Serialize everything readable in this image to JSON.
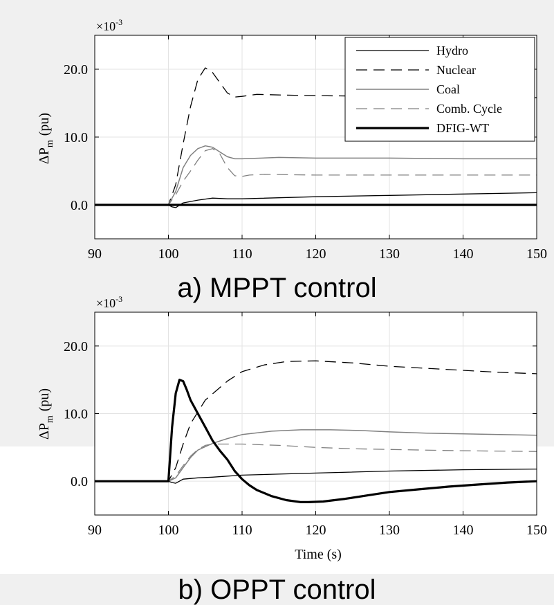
{
  "chart_data": [
    {
      "type": "line",
      "title": "a) MPPT control",
      "ylabel_main": "ΔP",
      "ylabel_sub": "m",
      "ylabel_unit": "(pu)",
      "exponent_base": "×10",
      "exponent_power": "-3",
      "xlabel": "",
      "xlim": [
        90,
        150
      ],
      "ylim": [
        -5,
        25
      ],
      "xticks": [
        90,
        100,
        110,
        120,
        130,
        140,
        150
      ],
      "yticks": [
        0,
        10,
        20
      ],
      "ytick_labels": [
        "0.0",
        "10.0",
        "20.0"
      ],
      "grid": true,
      "legend_position": "top-right",
      "series": [
        {
          "name": "Hydro",
          "style": "solid-thin-black",
          "x": [
            90,
            100,
            100.5,
            101,
            102,
            104,
            106,
            108,
            110,
            120,
            130,
            140,
            150
          ],
          "y": [
            0,
            0,
            -0.3,
            -0.4,
            0.3,
            0.7,
            1.0,
            0.9,
            0.9,
            1.2,
            1.4,
            1.6,
            1.8
          ]
        },
        {
          "name": "Nuclear",
          "style": "dashed-black",
          "x": [
            90,
            100,
            101,
            102,
            103,
            104,
            105,
            106,
            107,
            108,
            109,
            110,
            112,
            115,
            120,
            130,
            140,
            150
          ],
          "y": [
            0,
            0,
            3,
            9,
            14.5,
            18.5,
            20.2,
            19.5,
            18,
            16.5,
            15.9,
            16,
            16.3,
            16.2,
            16.1,
            16,
            15.9,
            15.8
          ]
        },
        {
          "name": "Coal",
          "style": "solid-gray",
          "x": [
            90,
            100,
            101,
            102,
            103,
            104,
            105,
            106,
            107,
            108,
            109,
            110,
            115,
            120,
            130,
            140,
            150
          ],
          "y": [
            0,
            0,
            2,
            5.5,
            7.3,
            8.3,
            8.7,
            8.5,
            7.8,
            7.1,
            6.8,
            6.8,
            7.0,
            6.9,
            6.9,
            6.8,
            6.8
          ]
        },
        {
          "name": "Comb. Cycle",
          "style": "dashed-gray",
          "x": [
            90,
            100,
            101,
            102,
            103,
            104,
            105,
            106,
            107,
            108,
            109,
            110,
            111,
            113,
            120,
            130,
            140,
            150
          ],
          "y": [
            0,
            0,
            1.5,
            3.5,
            5,
            6.6,
            8.0,
            8.3,
            7.5,
            5.5,
            4.3,
            4.2,
            4.4,
            4.5,
            4.4,
            4.4,
            4.4,
            4.4
          ]
        },
        {
          "name": "DFIG-WT",
          "style": "solid-thick-black",
          "x": [
            90,
            150
          ],
          "y": [
            0,
            0
          ]
        }
      ]
    },
    {
      "type": "line",
      "title": "b) OPPT control",
      "ylabel_main": "ΔP",
      "ylabel_sub": "m",
      "ylabel_unit": "(pu)",
      "exponent_base": "×10",
      "exponent_power": "-3",
      "xlabel": "Time (s)",
      "xlim": [
        90,
        150
      ],
      "ylim": [
        -5,
        25
      ],
      "xticks": [
        90,
        100,
        110,
        120,
        130,
        140,
        150
      ],
      "yticks": [
        0,
        10,
        20
      ],
      "ytick_labels": [
        "0.0",
        "10.0",
        "20.0"
      ],
      "grid": true,
      "series": [
        {
          "name": "Hydro",
          "style": "solid-thin-black",
          "x": [
            90,
            100,
            100.5,
            101,
            102,
            104,
            106,
            110,
            120,
            130,
            140,
            150
          ],
          "y": [
            0,
            0,
            -0.2,
            -0.3,
            0.3,
            0.5,
            0.6,
            0.9,
            1.2,
            1.5,
            1.7,
            1.8
          ]
        },
        {
          "name": "Nuclear",
          "style": "dashed-black",
          "x": [
            90,
            100,
            101,
            102,
            103,
            105,
            108,
            110,
            113,
            116,
            120,
            125,
            130,
            135,
            140,
            145,
            150
          ],
          "y": [
            0,
            0,
            2,
            5.5,
            8.5,
            12,
            14.8,
            16.2,
            17.2,
            17.7,
            17.8,
            17.5,
            17.0,
            16.7,
            16.4,
            16.1,
            15.9
          ]
        },
        {
          "name": "Coal",
          "style": "solid-gray",
          "x": [
            90,
            100,
            101,
            102,
            103,
            104,
            106,
            108,
            110,
            114,
            118,
            122,
            126,
            130,
            135,
            140,
            145,
            150
          ],
          "y": [
            0,
            0,
            0.5,
            2,
            3.5,
            4.6,
            5.6,
            6.3,
            6.9,
            7.4,
            7.6,
            7.6,
            7.5,
            7.3,
            7.1,
            7.0,
            6.9,
            6.8
          ]
        },
        {
          "name": "Comb. Cycle",
          "style": "dashed-gray",
          "x": [
            90,
            100,
            101,
            102,
            103,
            104,
            105,
            106,
            108,
            110,
            115,
            120,
            125,
            130,
            140,
            150
          ],
          "y": [
            0,
            0,
            0.8,
            2.3,
            3.7,
            4.7,
            5.3,
            5.5,
            5.5,
            5.5,
            5.3,
            5.0,
            4.8,
            4.7,
            4.5,
            4.4
          ]
        },
        {
          "name": "DFIG-WT",
          "style": "solid-thick-black",
          "x": [
            90,
            100,
            100.5,
            101,
            101.5,
            102,
            102.5,
            103,
            104,
            105,
            106,
            107,
            108,
            109,
            110,
            111,
            112,
            114,
            116,
            118,
            119,
            121,
            124,
            127,
            130,
            134,
            138,
            142,
            146,
            150
          ],
          "y": [
            0,
            0,
            8,
            13,
            15,
            14.8,
            13.5,
            12,
            10,
            8,
            6,
            4.5,
            3.2,
            1.5,
            0.3,
            -0.6,
            -1.3,
            -2.2,
            -2.8,
            -3.1,
            -3.1,
            -3.0,
            -2.6,
            -2.1,
            -1.6,
            -1.2,
            -0.8,
            -0.5,
            -0.2,
            0
          ]
        }
      ]
    }
  ]
}
